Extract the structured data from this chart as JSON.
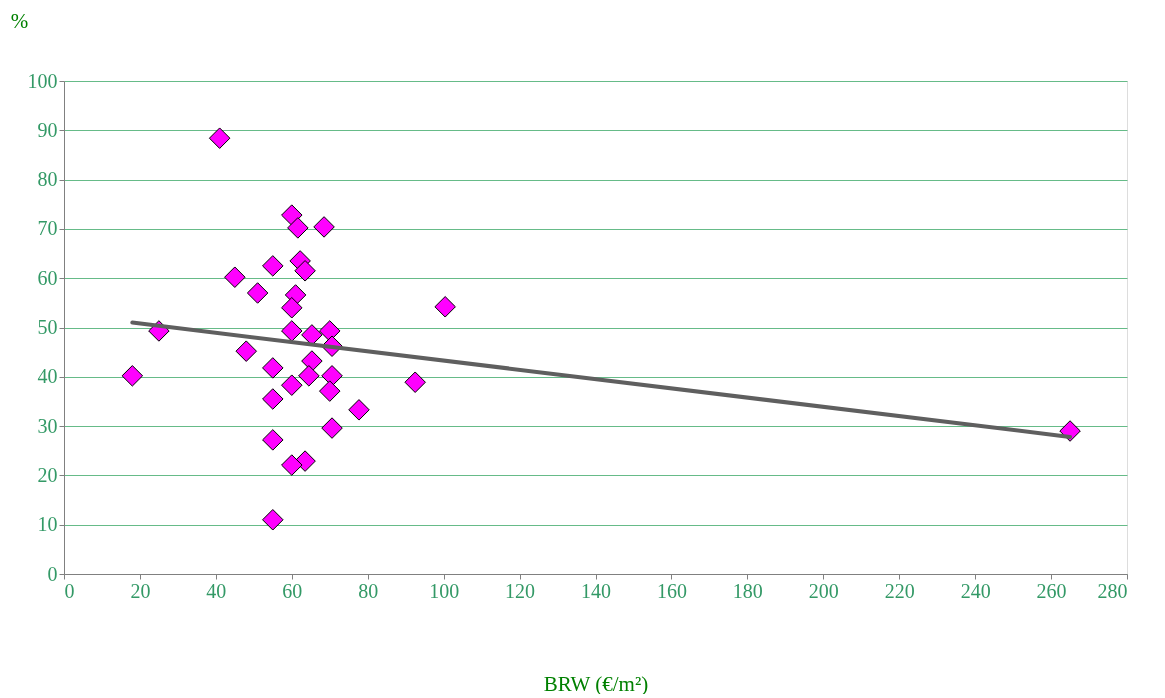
{
  "chart_data": {
    "type": "scatter",
    "xlabel": "BRW (€/m²)",
    "ylabel": "%",
    "xlim": [
      0,
      280
    ],
    "xticks": [
      0,
      20,
      40,
      60,
      80,
      100,
      120,
      140,
      160,
      180,
      200,
      220,
      240,
      260,
      280
    ],
    "ylim": [
      0,
      100
    ],
    "yticks": [
      0,
      10,
      20,
      30,
      40,
      50,
      60,
      70,
      80,
      90,
      100
    ],
    "grid": "y",
    "marker": "diamond",
    "series": [
      {
        "color": "#ff00ff",
        "x": [
          18,
          25,
          41,
          45,
          48,
          51,
          55,
          55,
          55,
          55,
          55,
          60,
          61.6,
          68.5,
          62.2,
          63.5,
          61,
          60,
          60,
          65.3,
          70,
          70.6,
          65.3,
          64.5,
          60,
          70.6,
          70,
          77.7,
          70.6,
          63.5,
          60,
          100.4,
          92.5,
          265
        ],
        "values": [
          40.2,
          49.3,
          88.4,
          60.2,
          45.2,
          57,
          62.5,
          41.8,
          35.5,
          27.2,
          11,
          72.8,
          70.2,
          70.4,
          63.5,
          61.5,
          56.6,
          54,
          49.3,
          48.5,
          49.3,
          46.2,
          43.2,
          40.2,
          38.3,
          40.2,
          37.1,
          33.3,
          29.6,
          22.9,
          22.1,
          54.2,
          38.9,
          29
        ]
      },
      {
        "type": "line",
        "marker": "none",
        "color": "#5f5f5f",
        "x": [
          18,
          265
        ],
        "values": [
          51,
          27.8
        ]
      }
    ]
  }
}
